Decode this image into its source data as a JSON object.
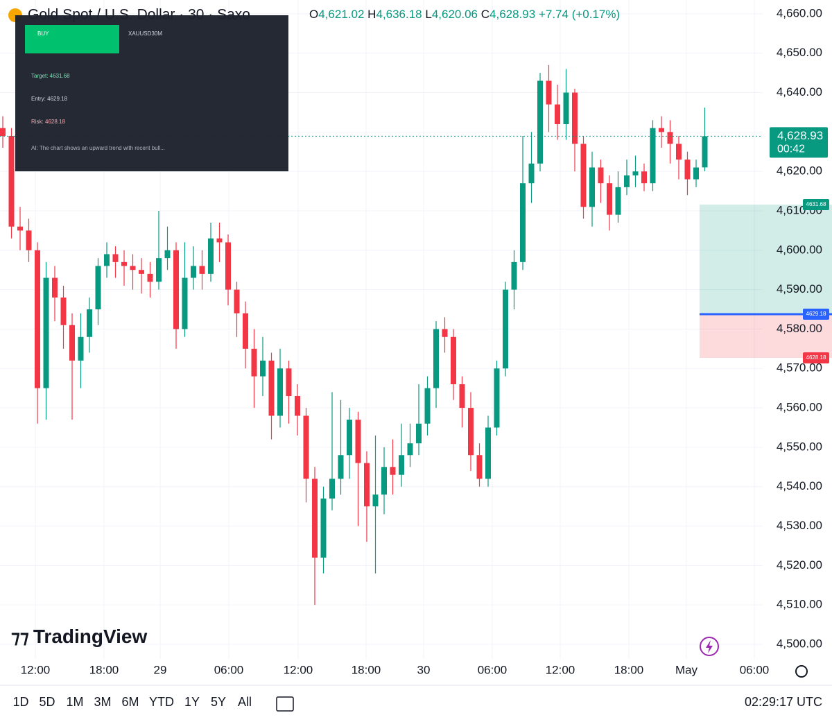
{
  "chart_data": {
    "type": "candlestick",
    "title": "Gold Spot / U.S. Dollar · 30 · Saxo",
    "ohlc_header": {
      "o": "O",
      "open": "4,621.02",
      "h": "H",
      "high": "4,636.18",
      "l": "L",
      "low": "4,620.06",
      "c": "C",
      "close": "4,628.93",
      "change": "+7.74 (+0.17%)"
    },
    "last_price_label": "4,628.93",
    "countdown": "00:42",
    "up_color": "#089981",
    "down_color": "#f23645",
    "grid": true,
    "open": [
      4631,
      4629,
      4606,
      4605,
      4600,
      4565,
      4593,
      4588,
      4581,
      4572,
      4578,
      4585,
      4596,
      4599,
      4597,
      4596,
      4595,
      4594,
      4592,
      4598,
      4600,
      4580,
      4593,
      4596,
      4594,
      4603,
      4602,
      4590,
      4584,
      4575,
      4568,
      4572,
      4558,
      4570,
      4563,
      4558,
      4542,
      4522,
      4537,
      4542,
      4548,
      4557,
      4546,
      4535,
      4538,
      4545,
      4543,
      4548,
      4551,
      4556,
      4565,
      4580,
      4578,
      4566,
      4560,
      4548,
      4542,
      4555,
      4570,
      4590,
      4597,
      4617,
      4622,
      4643,
      4637,
      4632,
      4640,
      4627,
      4611,
      4621,
      4617,
      4609,
      4616,
      4619,
      4620,
      4617,
      4631,
      4630,
      4627,
      4623,
      4618,
      4621.02
    ],
    "high": [
      4634,
      4631,
      4611,
      4608,
      4602,
      4597,
      4596,
      4591,
      4584,
      4584,
      4588,
      4598,
      4602,
      4601,
      4600,
      4599,
      4598,
      4597,
      4610,
      4606,
      4602,
      4602,
      4601,
      4600,
      4607,
      4607,
      4604,
      4592,
      4587,
      4580,
      4578,
      4574,
      4575,
      4572,
      4566,
      4560,
      4545,
      4540,
      4564,
      4562,
      4560,
      4559,
      4549,
      4553,
      4550,
      4552,
      4556,
      4556,
      4566,
      4568,
      4582,
      4583,
      4580,
      4568,
      4564,
      4551,
      4558,
      4572,
      4592,
      4600,
      4629,
      4630,
      4645,
      4647,
      4642,
      4646,
      4641,
      4629,
      4625,
      4623,
      4619,
      4620,
      4623,
      4624,
      4622,
      4633,
      4634,
      4633,
      4629,
      4625,
      4623,
      4636.18
    ],
    "low": [
      4626,
      4603,
      4600,
      4597,
      4556,
      4557,
      4582,
      4575,
      4557,
      4565,
      4574,
      4581,
      4593,
      4593,
      4591,
      4590,
      4589,
      4588,
      4590,
      4595,
      4575,
      4578,
      4590,
      4590,
      4592,
      4597,
      4586,
      4578,
      4570,
      4560,
      4563,
      4552,
      4555,
      4556,
      4553,
      4536,
      4510,
      4518,
      4534,
      4538,
      4542,
      4530,
      4526,
      4518,
      4533,
      4538,
      4540,
      4545,
      4548,
      4553,
      4560,
      4574,
      4562,
      4555,
      4544,
      4540,
      4540,
      4553,
      4568,
      4585,
      4595,
      4612,
      4620,
      4630,
      4628,
      4628,
      4620,
      4608,
      4606,
      4612,
      4605,
      4607,
      4614,
      4616,
      4615,
      4615,
      4626,
      4622,
      4618,
      4614,
      4616,
      4620.06
    ],
    "close": [
      4629,
      4606,
      4605,
      4600,
      4565,
      4593,
      4588,
      4581,
      4572,
      4578,
      4585,
      4596,
      4599,
      4597,
      4596,
      4595,
      4594,
      4592,
      4598,
      4600,
      4580,
      4593,
      4596,
      4594,
      4603,
      4602,
      4590,
      4584,
      4575,
      4568,
      4572,
      4558,
      4570,
      4563,
      4558,
      4542,
      4522,
      4537,
      4542,
      4548,
      4557,
      4546,
      4535,
      4538,
      4545,
      4543,
      4548,
      4551,
      4556,
      4565,
      4580,
      4578,
      4566,
      4560,
      4548,
      4542,
      4555,
      4570,
      4590,
      4597,
      4617,
      4622,
      4643,
      4637,
      4632,
      4640,
      4627,
      4611,
      4621,
      4617,
      4609,
      4616,
      4619,
      4620,
      4617,
      4631,
      4630,
      4627,
      4623,
      4618,
      4621,
      4628.93
    ],
    "xlim": [
      -0.32,
      87.68
    ],
    "xticks": [
      {
        "value": 3.76,
        "label": "12:00"
      },
      {
        "value": 11.68,
        "label": "18:00"
      },
      {
        "value": 18.16,
        "label": "29"
      },
      {
        "value": 26.08,
        "label": "06:00"
      },
      {
        "value": 34.08,
        "label": "12:00"
      },
      {
        "value": 41.92,
        "label": "18:00"
      },
      {
        "value": 48.56,
        "label": "30"
      },
      {
        "value": 56.48,
        "label": "06:00"
      },
      {
        "value": 64.32,
        "label": "12:00"
      },
      {
        "value": 72.24,
        "label": "18:00"
      },
      {
        "value": 78.88,
        "label": "May"
      },
      {
        "value": 86.72,
        "label": "06:00"
      }
    ],
    "ylim": [
      4496.3,
      4663.5
    ],
    "yticks": [
      {
        "value": 4500,
        "label": "4,500.00"
      },
      {
        "value": 4510,
        "label": "4,510.00"
      },
      {
        "value": 4520,
        "label": "4,520.00"
      },
      {
        "value": 4530,
        "label": "4,530.00"
      },
      {
        "value": 4540,
        "label": "4,540.00"
      },
      {
        "value": 4550,
        "label": "4,550.00"
      },
      {
        "value": 4560,
        "label": "4,560.00"
      },
      {
        "value": 4570,
        "label": "4,570.00"
      },
      {
        "value": 4580,
        "label": "4,580.00"
      },
      {
        "value": 4590,
        "label": "4,590.00"
      },
      {
        "value": 4600,
        "label": "4,600.00"
      },
      {
        "value": 4610,
        "label": "4,610.00"
      },
      {
        "value": 4620,
        "label": "4,620.00"
      },
      {
        "value": 4630,
        "label": "4,630.00"
      },
      {
        "value": 4640,
        "label": "4,640.00"
      },
      {
        "value": 4650,
        "label": "4,650.00"
      },
      {
        "value": 4660,
        "label": "4,660.00"
      }
    ]
  },
  "position_tool": {
    "target": "4631.68",
    "entry": "4629.18",
    "risk": "4628.18"
  },
  "panel": {
    "signal": "BUY",
    "symbol": "XAUUSD30M",
    "target": "Target: 4631.68",
    "entry": "Entry: 4629.18",
    "risk": "Risk: 4628.18",
    "ai": "AI: The chart shows an upward trend with recent bull..."
  },
  "logo": "TradingView",
  "toolbar": {
    "ranges": [
      "1D",
      "5D",
      "1M",
      "3M",
      "6M",
      "YTD",
      "1Y",
      "5Y",
      "All"
    ],
    "clock": "02:29:17 UTC"
  }
}
